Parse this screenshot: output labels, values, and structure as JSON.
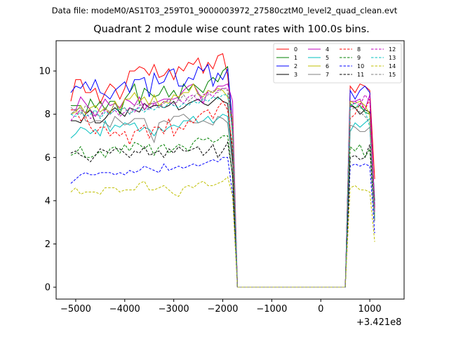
{
  "figure": {
    "suptitle": "Data file: modeM0/AS1T03_259T01_9000003972_27580cztM0_level2_quad_clean.evt",
    "title": "Quadrant 2 module wise count rates with 100.0s bins.",
    "x_offset_label": "+3.421e8"
  },
  "chart_data": {
    "type": "line",
    "title": "Quadrant 2 module wise count rates with 100.0s bins.",
    "xlabel": "",
    "ylabel": "",
    "x_offset": 342100000,
    "xlim": [
      -5400,
      1700
    ],
    "ylim": [
      -0.55,
      11.4
    ],
    "xticks": [
      -5000,
      -4000,
      -3000,
      -2000,
      -1000,
      0,
      1000
    ],
    "xtick_labels": [
      "−5000",
      "−4000",
      "−3000",
      "−2000",
      "−1000",
      "0",
      "1000"
    ],
    "yticks": [
      0,
      2,
      4,
      6,
      8,
      10
    ],
    "ytick_labels": [
      "0",
      "2",
      "4",
      "6",
      "8",
      "10"
    ],
    "grid": false,
    "legend_position": "top-right",
    "legend_columns": 4,
    "x_start": -5100,
    "x_step": 100,
    "series": [
      {
        "name": "0",
        "color": "#ff0000",
        "dash": "solid",
        "values": [
          8.6,
          9.6,
          9.6,
          9.0,
          9.0,
          9.2,
          8.5,
          9.0,
          9.4,
          9.2,
          8.7,
          9.2,
          10.0,
          10.0,
          10.2,
          10.1,
          9.8,
          10.3,
          9.7,
          9.8,
          10.1,
          9.6,
          10.2,
          10.0,
          10.4,
          10.3,
          10.6,
          9.9,
          10.4,
          10.1,
          10.7,
          10.8,
          9.8,
          7.4,
          0,
          0,
          0,
          0,
          0,
          0,
          0,
          0,
          0,
          0,
          0,
          0,
          0,
          0,
          0,
          0,
          0,
          0,
          0,
          0,
          0,
          0,
          0,
          9.3,
          9.0,
          9.4,
          9.3,
          9.1,
          5.0
        ]
      },
      {
        "name": "1",
        "color": "#008000",
        "dash": "solid",
        "values": [
          8.4,
          8.4,
          8.4,
          8.0,
          8.7,
          8.3,
          8.6,
          8.2,
          8.6,
          8.6,
          8.0,
          8.7,
          9.0,
          9.4,
          8.5,
          9.2,
          9.0,
          8.8,
          8.9,
          9.3,
          8.8,
          9.1,
          8.7,
          9.4,
          9.1,
          9.4,
          9.2,
          9.0,
          9.5,
          9.7,
          9.5,
          10.0,
          10.2,
          7.0,
          0,
          0,
          0,
          0,
          0,
          0,
          0,
          0,
          0,
          0,
          0,
          0,
          0,
          0,
          0,
          0,
          0,
          0,
          0,
          0,
          0,
          0,
          0,
          8.5,
          8.3,
          8.4,
          8.1,
          8.0,
          4.0
        ]
      },
      {
        "name": "2",
        "color": "#0000ff",
        "dash": "solid",
        "values": [
          9.0,
          9.3,
          9.2,
          9.5,
          9.1,
          9.6,
          9.0,
          8.9,
          8.7,
          9.1,
          9.3,
          9.5,
          9.0,
          9.6,
          9.6,
          9.7,
          8.8,
          9.9,
          9.4,
          9.5,
          10.0,
          10.1,
          9.3,
          9.3,
          9.7,
          9.6,
          10.2,
          10.0,
          10.3,
          9.3,
          9.9,
          9.6,
          10.1,
          7.6,
          0,
          0,
          0,
          0,
          0,
          0,
          0,
          0,
          0,
          0,
          0,
          0,
          0,
          0,
          0,
          0,
          0,
          0,
          0,
          0,
          0,
          0,
          0,
          9.1,
          8.7,
          9.1,
          9.3,
          9.0,
          3.7
        ]
      },
      {
        "name": "3",
        "color": "#000000",
        "dash": "solid",
        "values": [
          7.7,
          7.7,
          7.6,
          8.0,
          8.2,
          7.6,
          7.6,
          7.8,
          8.1,
          8.3,
          8.1,
          7.9,
          8.3,
          8.2,
          8.1,
          8.5,
          8.3,
          8.4,
          8.4,
          8.3,
          8.4,
          8.6,
          8.2,
          8.3,
          8.5,
          8.6,
          8.7,
          8.5,
          8.4,
          8.6,
          8.8,
          8.6,
          8.5,
          6.0,
          0,
          0,
          0,
          0,
          0,
          0,
          0,
          0,
          0,
          0,
          0,
          0,
          0,
          0,
          0,
          0,
          0,
          0,
          0,
          0,
          0,
          0,
          0,
          8.4,
          8.3,
          8.0,
          8.2,
          8.1,
          3.6
        ]
      },
      {
        "name": "4",
        "color": "#bf00bf",
        "dash": "solid",
        "values": [
          8.2,
          8.2,
          8.8,
          8.5,
          8.2,
          7.9,
          8.3,
          8.7,
          8.4,
          8.5,
          8.3,
          8.7,
          8.6,
          8.4,
          8.8,
          8.2,
          8.5,
          8.5,
          8.6,
          8.7,
          8.7,
          8.7,
          8.8,
          9.1,
          9.3,
          9.4,
          9.0,
          8.5,
          9.1,
          9.0,
          9.3,
          9.3,
          9.4,
          8.6,
          0,
          0,
          0,
          0,
          0,
          0,
          0,
          0,
          0,
          0,
          0,
          0,
          0,
          0,
          0,
          0,
          0,
          0,
          0,
          0,
          0,
          0,
          0,
          8.6,
          8.6,
          8.7,
          8.2,
          8.9,
          3.5
        ]
      },
      {
        "name": "5",
        "color": "#00bfbf",
        "dash": "solid",
        "values": [
          6.9,
          7.1,
          7.4,
          7.3,
          7.1,
          7.3,
          7.0,
          7.7,
          7.2,
          7.5,
          7.4,
          7.6,
          7.5,
          7.6,
          7.2,
          7.4,
          7.3,
          7.0,
          7.4,
          7.2,
          7.4,
          7.5,
          7.4,
          7.7,
          7.7,
          7.9,
          7.6,
          7.7,
          7.9,
          7.6,
          7.8,
          8.0,
          7.9,
          5.6,
          0,
          0,
          0,
          0,
          0,
          0,
          0,
          0,
          0,
          0,
          0,
          0,
          0,
          0,
          0,
          0,
          0,
          0,
          0,
          0,
          0,
          0,
          0,
          7.2,
          7.6,
          7.4,
          7.6,
          7.8,
          3.4
        ]
      },
      {
        "name": "6",
        "color": "#bfbf00",
        "dash": "solid",
        "values": [
          8.0,
          8.1,
          8.4,
          8.0,
          8.3,
          8.4,
          8.1,
          8.3,
          8.0,
          8.6,
          8.2,
          8.7,
          8.7,
          9.0,
          8.6,
          8.8,
          8.4,
          8.9,
          8.4,
          8.6,
          8.5,
          8.9,
          8.8,
          9.0,
          9.0,
          9.4,
          8.9,
          8.8,
          9.1,
          9.0,
          9.2,
          9.1,
          8.8,
          7.8,
          0,
          0,
          0,
          0,
          0,
          0,
          0,
          0,
          0,
          0,
          0,
          0,
          0,
          0,
          0,
          0,
          0,
          0,
          0,
          0,
          0,
          0,
          0,
          8.6,
          8.5,
          8.6,
          8.4,
          8.0,
          3.3
        ]
      },
      {
        "name": "7",
        "color": "#808080",
        "dash": "solid",
        "values": [
          8.0,
          8.2,
          8.3,
          7.7,
          7.6,
          7.7,
          7.7,
          7.6,
          7.4,
          7.9,
          7.7,
          7.5,
          7.6,
          7.8,
          7.8,
          7.8,
          7.2,
          6.7,
          7.6,
          7.7,
          7.6,
          7.9,
          7.9,
          8.0,
          7.8,
          7.6,
          7.6,
          7.7,
          7.6,
          7.5,
          7.9,
          7.8,
          7.6,
          5.6,
          0,
          0,
          0,
          0,
          0,
          0,
          0,
          0,
          0,
          0,
          0,
          0,
          0,
          0,
          0,
          0,
          0,
          0,
          0,
          0,
          0,
          0,
          0,
          7.5,
          7.4,
          7.2,
          7.2,
          7.4,
          3.1
        ]
      },
      {
        "name": "8",
        "color": "#ff0000",
        "dash": "dashed",
        "values": [
          8.2,
          8.2,
          7.7,
          7.9,
          7.4,
          7.1,
          7.4,
          7.4,
          7.0,
          7.2,
          7.0,
          7.2,
          6.6,
          7.2,
          7.3,
          7.5,
          6.9,
          7.4,
          7.4,
          7.1,
          7.8,
          7.0,
          7.4,
          7.3,
          7.7,
          7.6,
          7.9,
          8.1,
          8.2,
          7.8,
          8.3,
          8.6,
          8.2,
          6.5,
          0,
          0,
          0,
          0,
          0,
          0,
          0,
          0,
          0,
          0,
          0,
          0,
          0,
          0,
          0,
          0,
          0,
          0,
          0,
          0,
          0,
          0,
          0,
          7.8,
          8.0,
          8.5,
          8.2,
          8.7,
          3.6
        ]
      },
      {
        "name": "9",
        "color": "#008000",
        "dash": "dashed",
        "values": [
          6.1,
          6.2,
          6.5,
          6.0,
          6.0,
          6.1,
          6.3,
          6.0,
          6.4,
          6.5,
          6.2,
          6.6,
          6.3,
          6.7,
          6.6,
          6.4,
          6.6,
          6.1,
          6.5,
          6.6,
          6.2,
          6.4,
          6.6,
          6.5,
          6.3,
          6.7,
          6.9,
          6.8,
          6.9,
          6.7,
          6.8,
          7.0,
          7.0,
          5.1,
          0,
          0,
          0,
          0,
          0,
          0,
          0,
          0,
          0,
          0,
          0,
          0,
          0,
          0,
          0,
          0,
          0,
          0,
          0,
          0,
          0,
          0,
          0,
          6.5,
          6.3,
          6.6,
          6.0,
          6.4,
          3.0
        ]
      },
      {
        "name": "10",
        "color": "#0000ff",
        "dash": "dashed",
        "values": [
          4.8,
          5.0,
          5.2,
          5.3,
          5.2,
          5.2,
          5.3,
          5.3,
          5.3,
          5.2,
          5.3,
          5.2,
          5.4,
          5.3,
          5.4,
          5.6,
          5.5,
          5.4,
          5.3,
          5.7,
          5.4,
          5.5,
          5.6,
          5.5,
          5.6,
          5.7,
          5.6,
          5.7,
          5.8,
          5.9,
          5.8,
          6.0,
          6.0,
          4.3,
          0,
          0,
          0,
          0,
          0,
          0,
          0,
          0,
          0,
          0,
          0,
          0,
          0,
          0,
          0,
          0,
          0,
          0,
          0,
          0,
          0,
          0,
          0,
          5.6,
          5.7,
          5.6,
          5.7,
          5.6,
          2.5
        ]
      },
      {
        "name": "11",
        "color": "#000000",
        "dash": "dashed",
        "values": [
          6.2,
          6.3,
          6.1,
          6.0,
          5.8,
          6.1,
          6.4,
          6.3,
          6.2,
          6.4,
          6.4,
          6.2,
          6.0,
          6.3,
          6.2,
          6.5,
          6.1,
          6.2,
          6.3,
          6.0,
          6.4,
          6.2,
          6.5,
          6.3,
          6.3,
          6.4,
          6.5,
          6.1,
          6.3,
          6.6,
          6.0,
          6.3,
          6.7,
          5.2,
          0,
          0,
          0,
          0,
          0,
          0,
          0,
          0,
          0,
          0,
          0,
          0,
          0,
          0,
          0,
          0,
          0,
          0,
          0,
          0,
          0,
          0,
          0,
          6.0,
          6.1,
          5.9,
          6.0,
          6.6,
          3.1
        ]
      },
      {
        "name": "12",
        "color": "#bf00bf",
        "dash": "dashed",
        "values": [
          7.7,
          8.0,
          8.2,
          8.1,
          7.8,
          8.0,
          7.9,
          8.2,
          8.0,
          8.2,
          7.9,
          8.1,
          8.3,
          8.1,
          8.4,
          8.5,
          8.2,
          8.5,
          8.3,
          8.6,
          8.6,
          8.4,
          8.7,
          8.5,
          8.8,
          8.9,
          8.6,
          8.9,
          9.0,
          8.8,
          9.1,
          9.2,
          9.2,
          7.5,
          0,
          0,
          0,
          0,
          0,
          0,
          0,
          0,
          0,
          0,
          0,
          0,
          0,
          0,
          0,
          0,
          0,
          0,
          0,
          0,
          0,
          0,
          0,
          8.3,
          8.6,
          8.4,
          8.9,
          8.6,
          3.4
        ]
      },
      {
        "name": "13",
        "color": "#00bfbf",
        "dash": "dashed",
        "values": [
          8.0,
          7.9,
          8.1,
          7.9,
          8.0,
          8.2,
          7.8,
          8.1,
          8.0,
          8.2,
          8.2,
          8.3,
          8.0,
          8.2,
          8.3,
          8.1,
          8.3,
          8.2,
          8.4,
          8.3,
          8.5,
          8.4,
          8.3,
          8.5,
          8.4,
          8.6,
          8.5,
          8.7,
          8.6,
          8.8,
          8.7,
          8.9,
          8.9,
          7.3,
          0,
          0,
          0,
          0,
          0,
          0,
          0,
          0,
          0,
          0,
          0,
          0,
          0,
          0,
          0,
          0,
          0,
          0,
          0,
          0,
          0,
          0,
          0,
          8.4,
          8.5,
          8.3,
          8.2,
          7.4,
          3.2
        ]
      },
      {
        "name": "14",
        "color": "#bfbf00",
        "dash": "dashed",
        "values": [
          4.4,
          4.6,
          4.3,
          4.4,
          4.4,
          4.4,
          4.3,
          4.6,
          4.6,
          4.6,
          4.4,
          4.5,
          4.5,
          4.5,
          4.8,
          4.9,
          4.5,
          4.5,
          4.6,
          4.7,
          4.5,
          4.3,
          4.2,
          4.6,
          4.7,
          4.6,
          4.8,
          4.9,
          4.7,
          4.7,
          4.8,
          4.9,
          5.1,
          4.2,
          0,
          0,
          0,
          0,
          0,
          0,
          0,
          0,
          0,
          0,
          0,
          0,
          0,
          0,
          0,
          0,
          0,
          0,
          0,
          0,
          0,
          0,
          0,
          4.6,
          4.7,
          4.5,
          4.5,
          4.4,
          2.1
        ]
      },
      {
        "name": "15",
        "color": "#808080",
        "dash": "dashed",
        "values": [
          8.3,
          8.2,
          8.0,
          8.4,
          8.2,
          8.0,
          7.9,
          8.3,
          8.1,
          8.5,
          8.2,
          8.3,
          8.0,
          8.4,
          8.5,
          8.2,
          8.4,
          8.6,
          8.3,
          8.5,
          8.7,
          8.5,
          8.6,
          8.9,
          8.6,
          8.8,
          9.0,
          8.7,
          8.9,
          9.1,
          9.0,
          9.2,
          9.1,
          7.1,
          0,
          0,
          0,
          0,
          0,
          0,
          0,
          0,
          0,
          0,
          0,
          0,
          0,
          0,
          0,
          0,
          0,
          0,
          0,
          0,
          0,
          0,
          0,
          8.2,
          8.3,
          8.1,
          7.9,
          7.6,
          3.0
        ]
      }
    ]
  }
}
